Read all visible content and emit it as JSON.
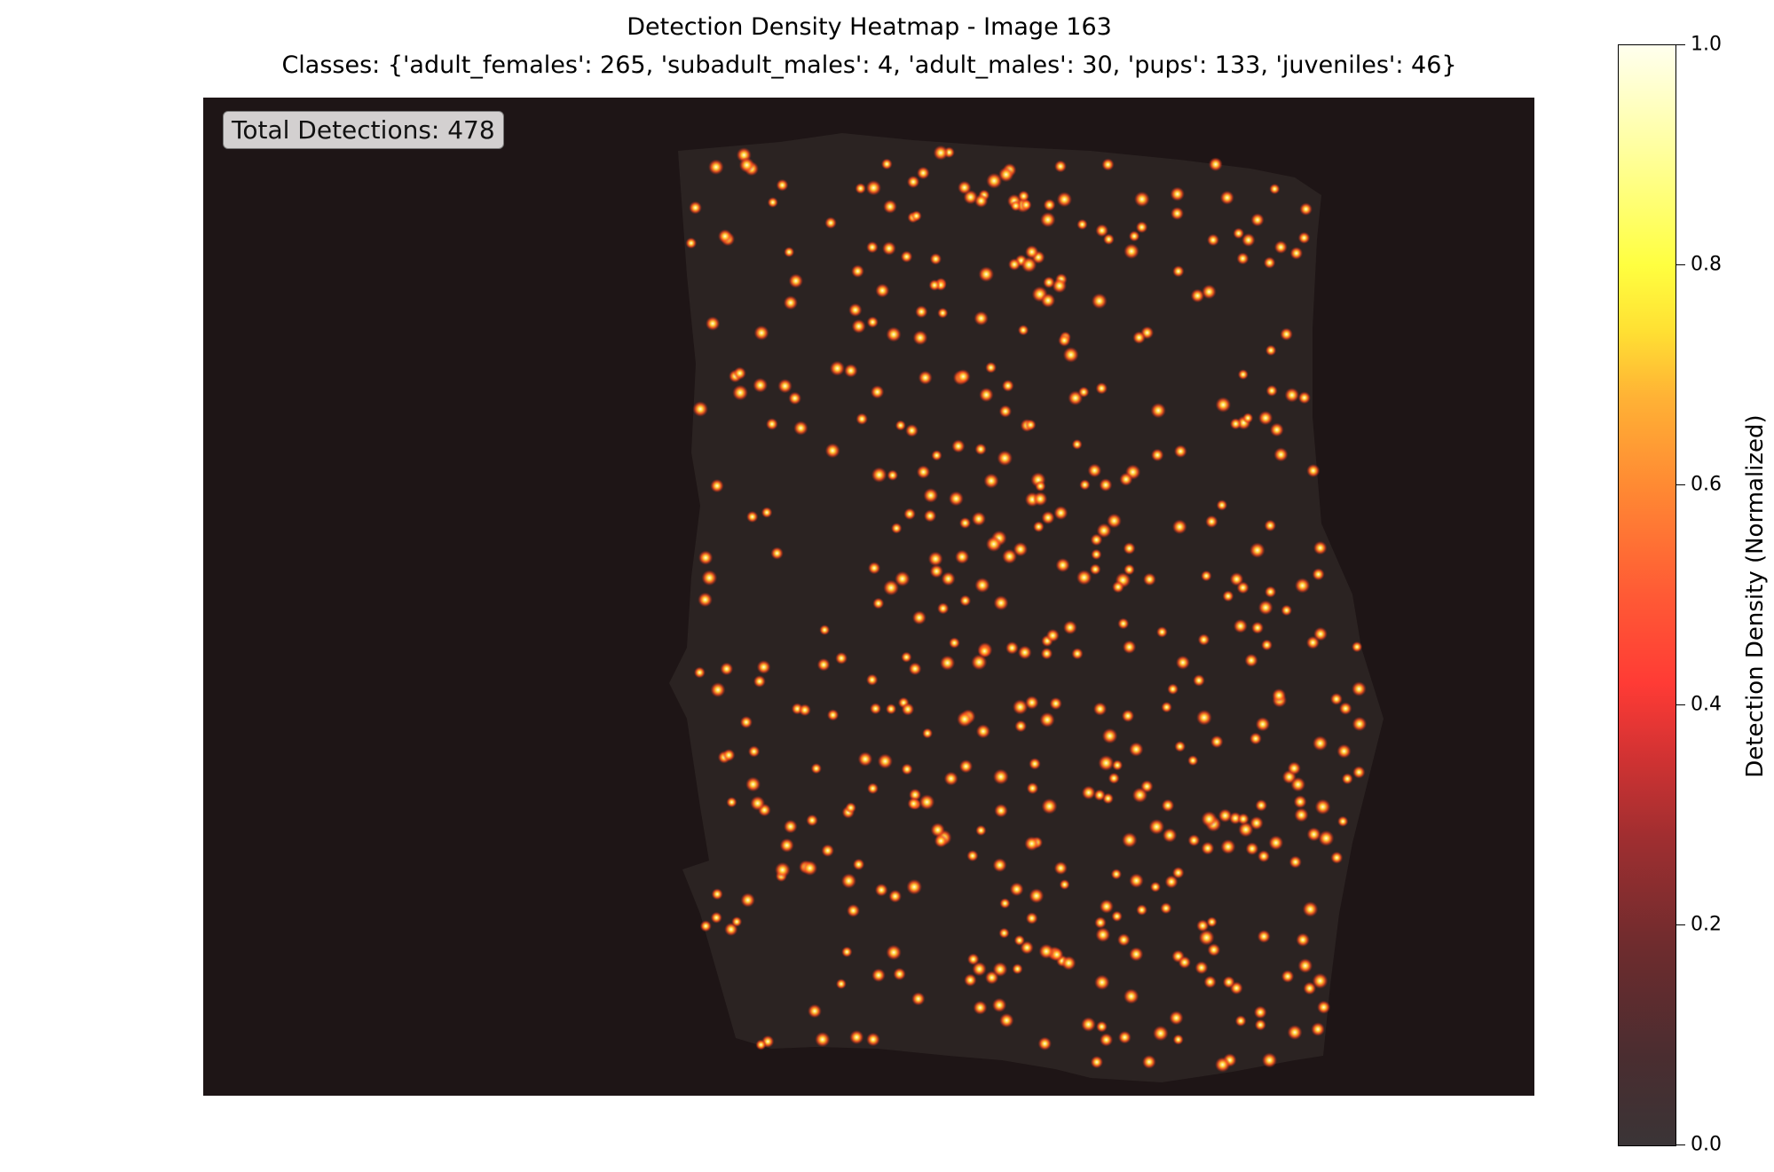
{
  "chart_data": {
    "type": "heatmap",
    "title": "Detection Density Heatmap - Image 163",
    "subtitle": "Classes: {'adult_females': 265, 'subadult_males': 4, 'adult_males': 30, 'pups': 133, 'juveniles': 46}",
    "annotation": "Total Detections: 478",
    "classes": {
      "adult_females": 265,
      "subadult_males": 4,
      "adult_males": 30,
      "pups": 133,
      "juveniles": 46
    },
    "total_detections": 478,
    "colorbar": {
      "label": "Detection Density (Normalized)",
      "range": [
        0.0,
        1.0
      ],
      "ticks": [
        "0.0",
        "0.2",
        "0.4",
        "0.6",
        "0.8",
        "1.0"
      ],
      "colormap": "hot"
    },
    "axes_visible": false
  }
}
